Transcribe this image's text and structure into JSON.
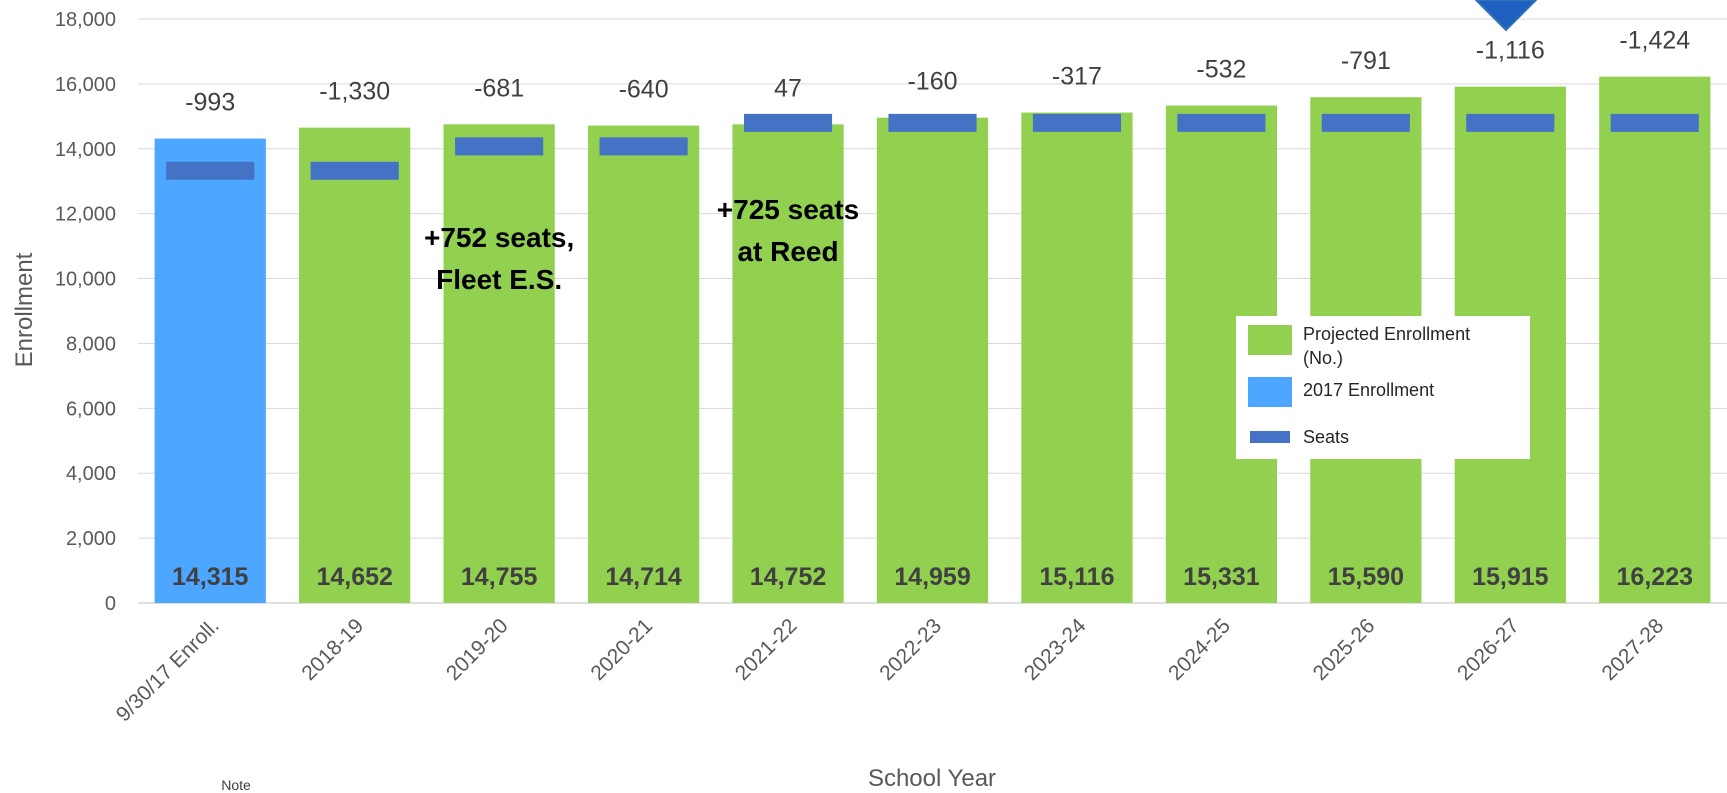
{
  "chart_data": {
    "type": "bar",
    "xlabel": "School Year",
    "ylabel": "Enrollment",
    "ylim": [
      0,
      18000
    ],
    "yticks": [
      0,
      2000,
      4000,
      6000,
      8000,
      10000,
      12000,
      14000,
      16000,
      18000
    ],
    "ytick_labels": [
      "0",
      "2,000",
      "4,000",
      "6,000",
      "8,000",
      "10,000",
      "12,000",
      "14,000",
      "16,000",
      "18,000"
    ],
    "grid": true,
    "legend_position": "right",
    "categories": [
      "9/30/17 Enroll.",
      "2018-19",
      "2019-20",
      "2020-21",
      "2021-22",
      "2022-23",
      "2023-24",
      "2024-25",
      "2025-26",
      "2026-27",
      "2027-28"
    ],
    "series": [
      {
        "name": "Projected Enrollment (No.)",
        "color": "#92d050",
        "values": [
          null,
          14652,
          14755,
          14714,
          14752,
          14959,
          15116,
          15331,
          15590,
          15915,
          16223
        ]
      },
      {
        "name": "2017 Enrollment",
        "color": "#4da6ff",
        "values": [
          14315,
          null,
          null,
          null,
          null,
          null,
          null,
          null,
          null,
          null,
          null
        ]
      },
      {
        "name": "Seats",
        "color": "#4472c4",
        "values": [
          13322,
          13322,
          14074,
          14074,
          14799,
          14799,
          14799,
          14799,
          14799,
          14799,
          14799
        ]
      }
    ],
    "value_labels": [
      "14,315",
      "14,652",
      "14,755",
      "14,714",
      "14,752",
      "14,959",
      "15,116",
      "15,331",
      "15,590",
      "15,915",
      "16,223"
    ],
    "difference_labels": [
      "-993",
      "-1,330",
      "-681",
      "-640",
      "47",
      "-160",
      "-317",
      "-532",
      "-791",
      "-1,116",
      "-1,424"
    ],
    "annotations": [
      {
        "lines": [
          "+752 seats,",
          "Fleet E.S."
        ],
        "category": "2019-20"
      },
      {
        "lines": [
          "+725 seats",
          "at Reed"
        ],
        "category": "2021-22"
      }
    ],
    "legend": [
      "Projected Enrollment",
      "(No.)",
      "2017 Enrollment",
      "Seats"
    ],
    "note": "Note"
  }
}
